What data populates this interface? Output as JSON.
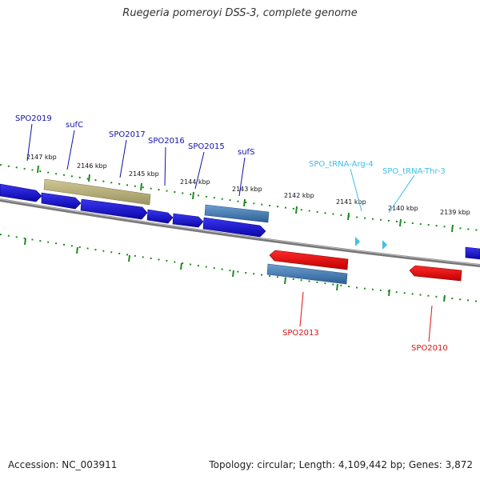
{
  "title": "Ruegeria pomeroyi DSS-3, complete genome",
  "footer": {
    "accession": "Accession: NC_003911",
    "summary": "Topology: circular; Length: 4,109,442 bp; Genes: 3,872"
  },
  "colors": {
    "cds": "#1a10e8",
    "cds_reverse": "#ee1111",
    "highlight_blue": "#4a7fb5",
    "highlight_tan": "#b8b080",
    "trna": "#3fbfe5",
    "backbone": "#777777",
    "tick": "#1e8a1e",
    "label_forward": "#1111aa",
    "label_reverse": "#dd1111"
  },
  "scale_labels": [
    "2147 kbp",
    "2146 kbp",
    "2145 kbp",
    "2144 kbp",
    "2143 kbp",
    "2142 kbp",
    "2141 kbp",
    "2140 kbp",
    "2139 kbp"
  ],
  "forward_labels": [
    "SPO2019",
    "sufC",
    "SPO2017",
    "SPO2016",
    "SPO2015",
    "sufS"
  ],
  "trna_labels": [
    "SPO_tRNA-Arg-4",
    "SPO_tRNA-Thr-3"
  ],
  "reverse_labels": [
    "SPO2013",
    "SPO2010"
  ]
}
